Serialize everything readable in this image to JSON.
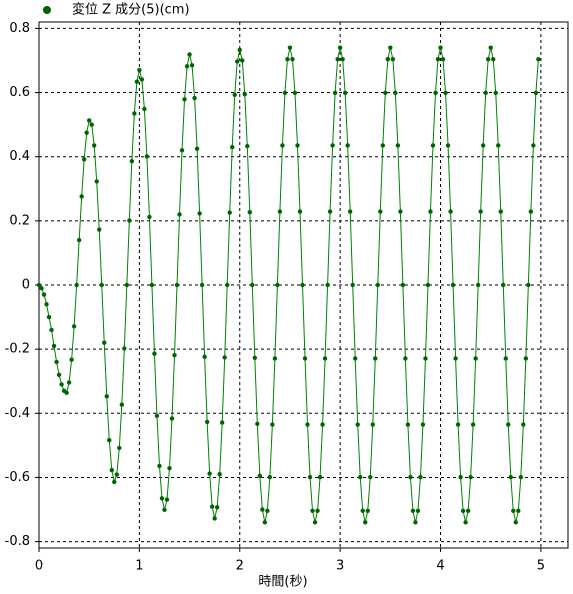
{
  "chart_data": {
    "type": "line",
    "x_label": "時間(秒)",
    "x": [
      0,
      0.025,
      0.05,
      0.075,
      0.1,
      0.125,
      0.15,
      0.175,
      0.2,
      0.225,
      0.25,
      0.275,
      0.3,
      0.325,
      0.35,
      0.375,
      0.4,
      0.425,
      0.45,
      0.475,
      0.5,
      0.525,
      0.55,
      0.575,
      0.6,
      0.625,
      0.65,
      0.675,
      0.7,
      0.725,
      0.75,
      0.775,
      0.8,
      0.825,
      0.85,
      0.875,
      0.9,
      0.925,
      0.95,
      0.975,
      1,
      1.025,
      1.05,
      1.075,
      1.1,
      1.125,
      1.15,
      1.175,
      1.2,
      1.225,
      1.25,
      1.275,
      1.3,
      1.325,
      1.35,
      1.375,
      1.4,
      1.425,
      1.45,
      1.475,
      1.5,
      1.525,
      1.55,
      1.575,
      1.6,
      1.625,
      1.65,
      1.675,
      1.7,
      1.725,
      1.75,
      1.775,
      1.8,
      1.825,
      1.85,
      1.875,
      1.9,
      1.925,
      1.95,
      1.975,
      2,
      2.025,
      2.05,
      2.075,
      2.1,
      2.125,
      2.15,
      2.175,
      2.2,
      2.225,
      2.25,
      2.275,
      2.3,
      2.325,
      2.35,
      2.375,
      2.4,
      2.425,
      2.45,
      2.475,
      2.5,
      2.525,
      2.55,
      2.575,
      2.6,
      2.625,
      2.65,
      2.675,
      2.7,
      2.725,
      2.75,
      2.775,
      2.8,
      2.825,
      2.85,
      2.875,
      2.9,
      2.925,
      2.95,
      2.975,
      3,
      3.025,
      3.05,
      3.075,
      3.1,
      3.125,
      3.15,
      3.175,
      3.2,
      3.225,
      3.25,
      3.275,
      3.3,
      3.325,
      3.35,
      3.375,
      3.4,
      3.425,
      3.45,
      3.475,
      3.5,
      3.525,
      3.55,
      3.575,
      3.6,
      3.625,
      3.65,
      3.675,
      3.7,
      3.725,
      3.75,
      3.775,
      3.8,
      3.825,
      3.85,
      3.875,
      3.9,
      3.925,
      3.95,
      3.975,
      4,
      4.025,
      4.05,
      4.075,
      4.1,
      4.125,
      4.15,
      4.175,
      4.2,
      4.225,
      4.25,
      4.275,
      4.3,
      4.325,
      4.35,
      4.375,
      4.4,
      4.425,
      4.45,
      4.475,
      4.5,
      4.525,
      4.55,
      4.575,
      4.6,
      4.625,
      4.65,
      4.675,
      4.7,
      4.725,
      4.75,
      4.775,
      4.8,
      4.825,
      4.85,
      4.875,
      4.9,
      4.925,
      4.95,
      4.975
    ],
    "series": [
      {
        "name": "変位 Z 成分(5)(cm)",
        "color": "#008000",
        "marker_color": "#006400",
        "values": [
          0,
          -0.01,
          -0.03,
          -0.06,
          -0.1,
          -0.14,
          -0.19,
          -0.24,
          -0.28,
          -0.31,
          -0.33,
          -0.336,
          -0.304,
          -0.233,
          -0.129,
          0,
          0.14,
          0.276,
          0.392,
          0.475,
          0.513,
          0.5,
          0.435,
          0.323,
          0.173,
          0,
          -0.18,
          -0.347,
          -0.484,
          -0.577,
          -0.614,
          -0.591,
          -0.508,
          -0.373,
          -0.198,
          0,
          0.201,
          0.386,
          0.535,
          0.634,
          0.67,
          0.641,
          0.549,
          0.401,
          0.212,
          0,
          -0.214,
          -0.408,
          -0.564,
          -0.665,
          -0.701,
          -0.669,
          -0.571,
          -0.416,
          -0.219,
          0,
          0.22,
          0.42,
          0.579,
          0.682,
          0.719,
          0.685,
          0.583,
          0.425,
          0.223,
          0,
          -0.224,
          -0.427,
          -0.588,
          -0.691,
          -0.728,
          -0.693,
          -0.59,
          -0.429,
          -0.226,
          0,
          0.226,
          0.43,
          0.593,
          0.697,
          0.733,
          0.7,
          0.595,
          0.433,
          0.227,
          0,
          -0.227,
          -0.433,
          -0.595,
          -0.7,
          -0.74,
          -0.704,
          -0.599,
          -0.435,
          -0.229,
          0,
          0.229,
          0.435,
          0.599,
          0.704,
          0.74,
          0.704,
          0.599,
          0.435,
          0.229,
          0,
          -0.229,
          -0.435,
          -0.599,
          -0.704,
          -0.74,
          -0.704,
          -0.599,
          -0.435,
          -0.229,
          0,
          0.229,
          0.435,
          0.599,
          0.704,
          0.74,
          0.704,
          0.599,
          0.435,
          0.229,
          0,
          -0.229,
          -0.435,
          -0.599,
          -0.704,
          -0.74,
          -0.704,
          -0.599,
          -0.435,
          -0.229,
          0,
          0.229,
          0.435,
          0.599,
          0.704,
          0.74,
          0.704,
          0.599,
          0.435,
          0.229,
          0,
          -0.229,
          -0.435,
          -0.599,
          -0.704,
          -0.74,
          -0.704,
          -0.599,
          -0.435,
          -0.229,
          0,
          0.229,
          0.435,
          0.599,
          0.704,
          0.74,
          0.704,
          0.599,
          0.435,
          0.229,
          0,
          -0.229,
          -0.435,
          -0.599,
          -0.704,
          -0.74,
          -0.704,
          -0.599,
          -0.435,
          -0.229,
          0,
          0.229,
          0.435,
          0.599,
          0.704,
          0.74,
          0.704,
          0.599,
          0.435,
          0.229,
          0,
          -0.229,
          -0.435,
          -0.599,
          -0.704,
          -0.74,
          -0.704,
          -0.599,
          -0.435,
          -0.229,
          0,
          0.229,
          0.435,
          0.599,
          0.704
        ]
      }
    ],
    "xlim": [
      0,
      5.27
    ],
    "xticks": [
      0,
      1,
      2,
      3,
      4,
      5
    ],
    "ylim": [
      -0.82,
      0.82
    ],
    "yticks": [
      -0.8,
      -0.6,
      -0.4,
      -0.2,
      0,
      0.2,
      0.4,
      0.6,
      0.8
    ],
    "grid": true
  }
}
